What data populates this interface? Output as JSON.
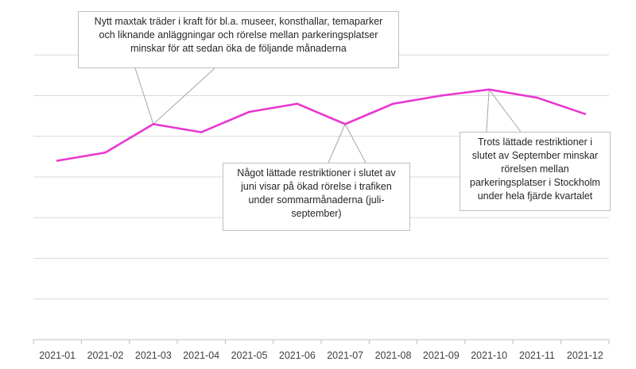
{
  "chart_data": {
    "type": "line",
    "title": "",
    "xlabel": "",
    "ylabel": "",
    "categories": [
      "2021-01",
      "2021-02",
      "2021-03",
      "2021-04",
      "2021-05",
      "2021-06",
      "2021-07",
      "2021-08",
      "2021-09",
      "2021-10",
      "2021-11",
      "2021-12"
    ],
    "series": [
      {
        "values": [
          4.4,
          4.6,
          5.3,
          5.1,
          5.6,
          5.8,
          5.3,
          5.8,
          6.0,
          6.15,
          5.95,
          5.55
        ],
        "color": "#e838d0"
      }
    ],
    "ylim": [
      0,
      8
    ],
    "y_gridlines": [
      1,
      2,
      3,
      4,
      5,
      6,
      7
    ],
    "y_axis_labels_visible": false,
    "grid": true,
    "legend": "none",
    "annotations": [
      {
        "point_index": 2,
        "text": "Nytt maxtak träder i kraft för bl.a. museer, konsthallar, temaparker och liknande anläggningar och rörelse mellan parkeringsplatser minskar för att sedan öka de följande månaderna"
      },
      {
        "point_index": 6,
        "text": "Något lättade restriktioner i slutet av juni visar på ökad rörelse i trafiken under sommarmånaderna (juli-september)"
      },
      {
        "point_index": 9,
        "text": "Trots lättade restriktioner i slutet av September minskar rörelsen mellan parkeringsplatser i Stockholm under hela fjärde kvartalet"
      }
    ]
  },
  "callouts": {
    "c1": "Nytt maxtak träder i kraft för bl.a. museer, konsthallar, temaparker\noch liknande anläggningar och rörelse mellan parkeringsplatser\nminskar för att sedan öka de följande månaderna",
    "c2": "Något lättade restriktioner i slutet av\njuni visar på ökad rörelse i trafiken\nunder sommarmånaderna (juli-\nseptember)",
    "c3": "Trots lättade restriktioner i\nslutet av September minskar\nrörelsen mellan\nparkeringsplatser i Stockholm\nunder hela fjärde kvartalet"
  }
}
